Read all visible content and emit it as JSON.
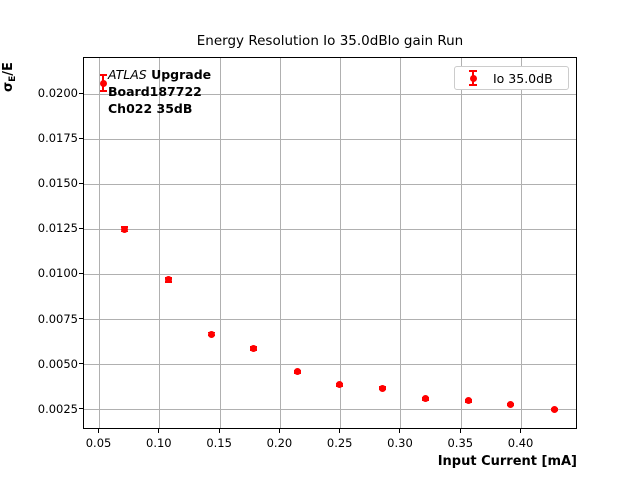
{
  "figure": {
    "title": "Energy Resolution Io 35.0dBlo gain Run",
    "xlabel": "Input Current [mA]",
    "ylabel": {
      "sigma": "σ",
      "sub": "E",
      "rest": "/E"
    },
    "legend": {
      "label": "Io 35.0dB"
    },
    "annotation": {
      "atlas": "ATLAS",
      "line1_bold": " Upgrade",
      "line2": "Board187722",
      "line3": "Ch022 35dB"
    },
    "colors": {
      "series": "#ff0000",
      "grid": "#b0b0b0",
      "spine": "#000000",
      "legend_edge": "#cccccc"
    }
  },
  "chart_data": {
    "type": "scatter",
    "title": "Energy Resolution Io 35.0dBlo gain Run",
    "xlabel": "Input Current [mA]",
    "ylabel": "σ_E/E",
    "grid": true,
    "legend_position": "upper right",
    "xlim": [
      0.0371,
      0.4468
    ],
    "ylim": [
      0.00138,
      0.022
    ],
    "xticks": {
      "values": [
        0.05,
        0.1,
        0.15,
        0.2,
        0.25,
        0.3,
        0.35,
        0.4
      ],
      "labels": [
        "0.05",
        "0.10",
        "0.15",
        "0.20",
        "0.25",
        "0.30",
        "0.35",
        "0.40"
      ]
    },
    "yticks": {
      "values": [
        0.0025,
        0.005,
        0.0075,
        0.01,
        0.0125,
        0.015,
        0.0175,
        0.02
      ],
      "labels": [
        "0.0025",
        "0.0050",
        "0.0075",
        "0.0100",
        "0.0125",
        "0.0150",
        "0.0175",
        "0.0200"
      ]
    },
    "series": [
      {
        "name": "Io 35.0dB",
        "marker": "circle-errorbar",
        "color": "#ff0000",
        "x": [
          0.053,
          0.071,
          0.107,
          0.143,
          0.178,
          0.214,
          0.249,
          0.285,
          0.32,
          0.356,
          0.391,
          0.427
        ],
        "y": [
          0.0206,
          0.0125,
          0.0097,
          0.0067,
          0.0059,
          0.0046,
          0.0039,
          0.0037,
          0.0031,
          0.003,
          0.0028,
          0.0025
        ],
        "yerr": [
          0.00045,
          0.00012,
          0.0001,
          8e-05,
          7e-05,
          6e-05,
          6e-05,
          5e-05,
          5e-05,
          5e-05,
          4e-05,
          4e-05
        ]
      }
    ]
  }
}
